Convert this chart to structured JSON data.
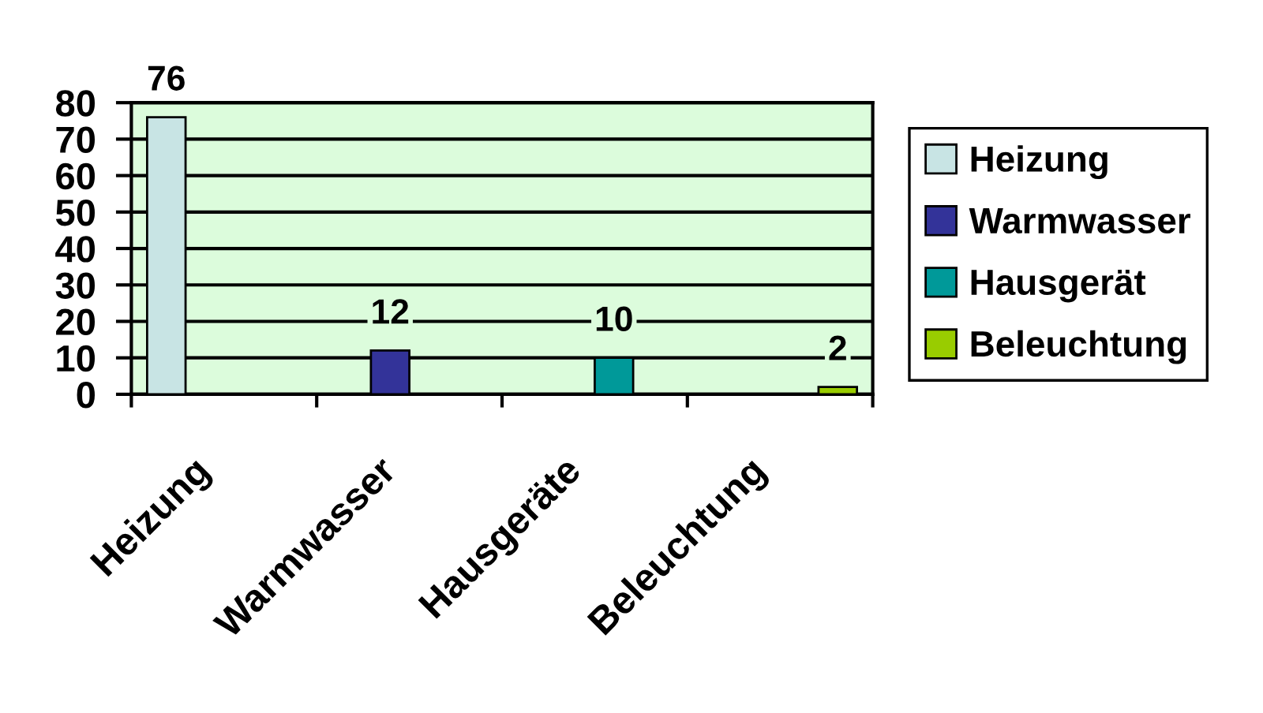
{
  "chart_data": {
    "type": "bar",
    "categories": [
      "Heizung",
      "Warmwasser",
      "Hausgeräte",
      "Beleuchtung"
    ],
    "series": [
      {
        "name": "Heizung",
        "color": "#c8e4e4",
        "values": [
          76,
          null,
          null,
          null
        ]
      },
      {
        "name": "Warmwasser",
        "color": "#333399",
        "values": [
          null,
          12,
          null,
          null
        ]
      },
      {
        "name": "Hausgerät",
        "color": "#009999",
        "values": [
          null,
          null,
          10,
          null
        ]
      },
      {
        "name": "Beleuchtung",
        "color": "#99cc00",
        "values": [
          null,
          null,
          null,
          2
        ]
      }
    ],
    "ylim": [
      0,
      80
    ],
    "yticks": [
      0,
      10,
      20,
      30,
      40,
      50,
      60,
      70,
      80
    ],
    "grid": "y",
    "legend": "right",
    "data_labels": true
  }
}
